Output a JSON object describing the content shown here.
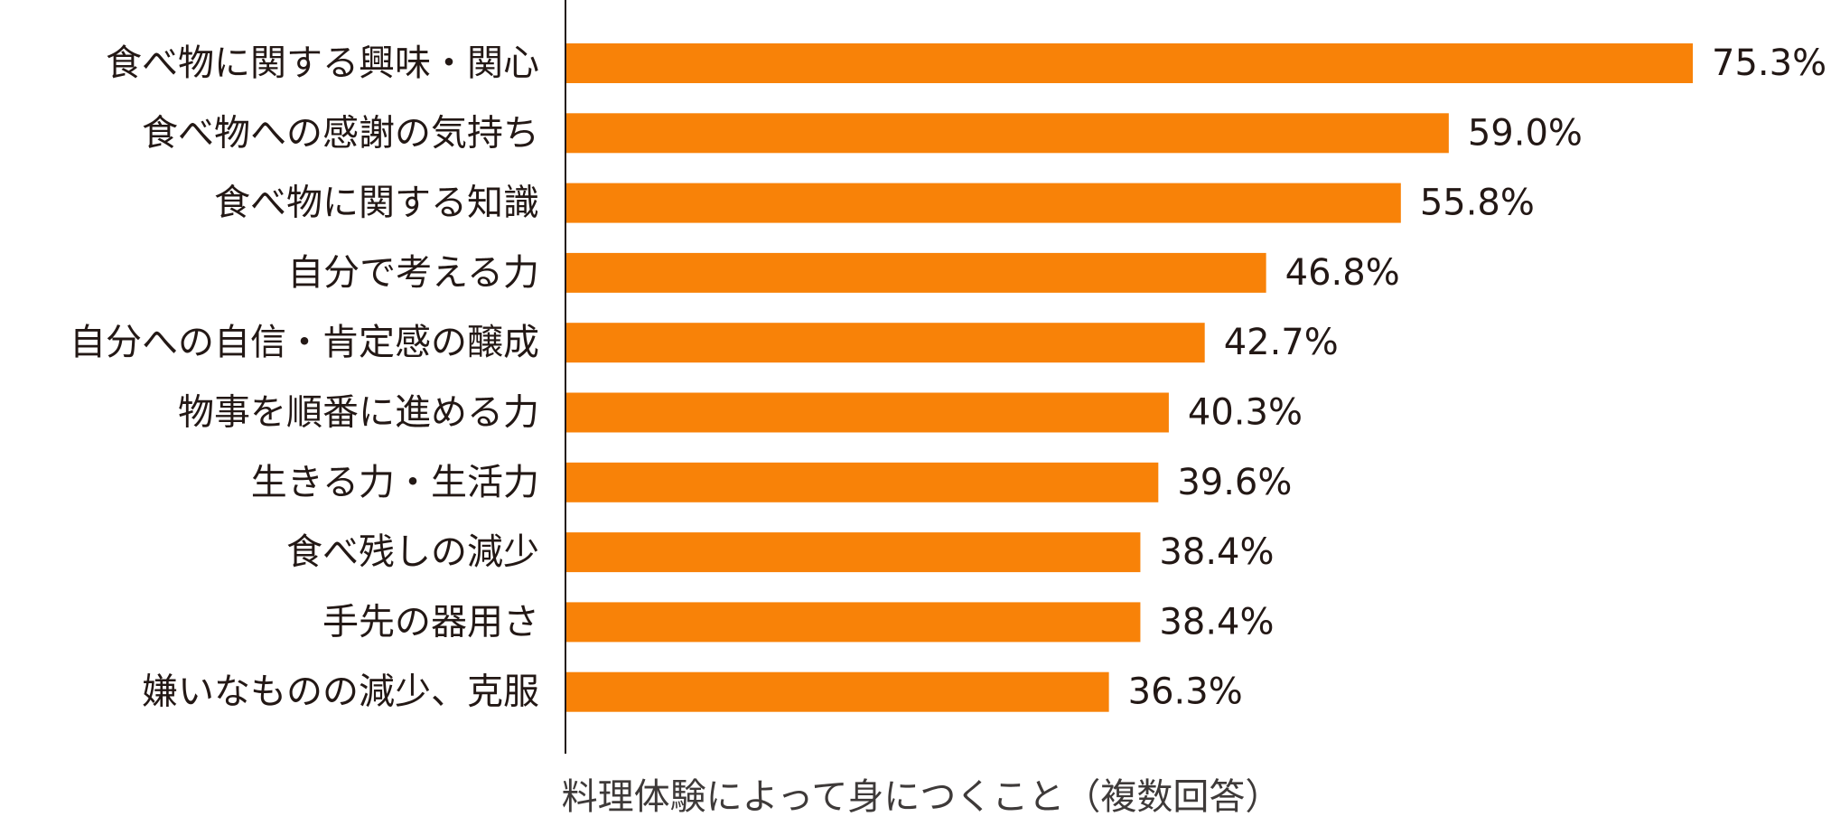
{
  "chart_data": {
    "type": "bar",
    "orientation": "horizontal",
    "categories": [
      "食べ物に関する興味・関心",
      "食べ物への感謝の気持ち",
      "食べ物に関する知識",
      "自分で考える力",
      "自分への自信・肯定感の醸成",
      "物事を順番に進める力",
      "生きる力・生活力",
      "食べ残しの減少",
      "手先の器用さ",
      "嫌いなものの減少、克服"
    ],
    "values": [
      75.3,
      59.0,
      55.8,
      46.8,
      42.7,
      40.3,
      39.6,
      38.4,
      38.4,
      36.3
    ],
    "value_labels": [
      "75.3%",
      "59.0%",
      "55.8%",
      "46.8%",
      "42.7%",
      "40.3%",
      "39.6%",
      "38.4%",
      "38.4%",
      "36.3%"
    ],
    "xlim": [
      0,
      100
    ],
    "caption": "料理体験によって身につくこと（複数回答）",
    "bar_color": "#f88208",
    "axis_color": "#231815",
    "grid": false,
    "legend": false
  }
}
